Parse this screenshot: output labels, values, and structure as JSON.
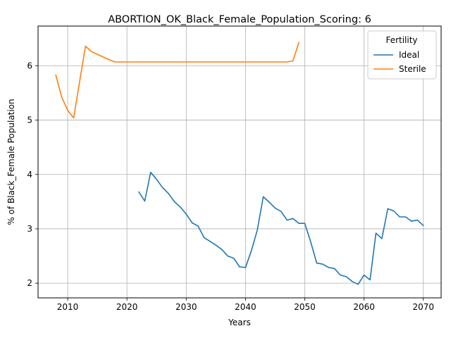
{
  "chart_data": {
    "type": "line",
    "title": "ABORTION_OK_Black_Female_Population_Scoring: 6",
    "xlabel": "Years",
    "ylabel": "% of Black_Female Population",
    "xlim": [
      2005,
      2073
    ],
    "ylim": [
      1.73,
      6.73
    ],
    "x_ticks": [
      2010,
      2020,
      2030,
      2040,
      2050,
      2060,
      2070
    ],
    "y_ticks": [
      2,
      3,
      4,
      5,
      6
    ],
    "grid": true,
    "legend": {
      "title": "Fertility",
      "placement": "top-right"
    },
    "series": [
      {
        "name": "Ideal",
        "color": "#1f77b4",
        "x": [
          2022,
          2023,
          2024,
          2025,
          2026,
          2027,
          2028,
          2029,
          2030,
          2031,
          2032,
          2033,
          2034,
          2035,
          2036,
          2037,
          2038,
          2039,
          2040,
          2041,
          2042,
          2043,
          2044,
          2045,
          2046,
          2047,
          2048,
          2049,
          2050,
          2051,
          2052,
          2053,
          2054,
          2055,
          2056,
          2057,
          2058,
          2059,
          2060,
          2061,
          2062,
          2063,
          2064,
          2065,
          2066,
          2067,
          2068,
          2069,
          2070
        ],
        "y": [
          3.68,
          3.51,
          4.04,
          3.91,
          3.76,
          3.65,
          3.5,
          3.4,
          3.27,
          3.11,
          3.05,
          2.84,
          2.77,
          2.7,
          2.62,
          2.5,
          2.46,
          2.3,
          2.29,
          2.6,
          2.98,
          3.59,
          3.49,
          3.38,
          3.32,
          3.16,
          3.19,
          3.1,
          3.1,
          2.76,
          2.37,
          2.35,
          2.29,
          2.27,
          2.15,
          2.12,
          2.03,
          1.98,
          2.15,
          2.06,
          2.92,
          2.82,
          3.37,
          3.33,
          3.22,
          3.22,
          3.14,
          3.16,
          3.06
        ]
      },
      {
        "name": "Sterile",
        "color": "#ff7f0e",
        "x": [
          2008,
          2009,
          2010,
          2011,
          2012,
          2013,
          2014,
          2015,
          2016,
          2017,
          2018,
          2020,
          2025,
          2030,
          2035,
          2040,
          2045,
          2046,
          2047,
          2048,
          2049
        ],
        "y": [
          5.83,
          5.42,
          5.18,
          5.04,
          5.7,
          6.36,
          6.26,
          6.21,
          6.16,
          6.11,
          6.07,
          6.07,
          6.07,
          6.07,
          6.07,
          6.07,
          6.07,
          6.07,
          6.07,
          6.09,
          6.43
        ]
      }
    ]
  }
}
